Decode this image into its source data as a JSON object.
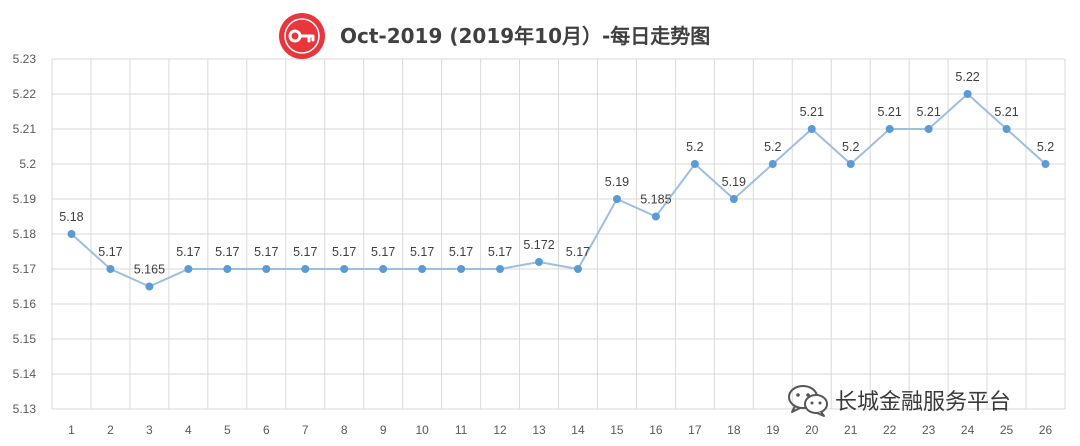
{
  "chart_data": {
    "type": "line",
    "title": "Oct-2019 (2019年10月）-每日走势图",
    "categories": [
      "1",
      "2",
      "3",
      "4",
      "5",
      "6",
      "7",
      "8",
      "9",
      "10",
      "11",
      "12",
      "13",
      "14",
      "15",
      "16",
      "17",
      "18",
      "19",
      "20",
      "21",
      "22",
      "23",
      "24",
      "25",
      "26"
    ],
    "series": [
      {
        "values": [
          5.18,
          5.17,
          5.165,
          5.17,
          5.17,
          5.17,
          5.17,
          5.17,
          5.17,
          5.17,
          5.17,
          5.17,
          5.172,
          5.17,
          5.19,
          5.185,
          5.2,
          5.19,
          5.2,
          5.21,
          5.2,
          5.21,
          5.21,
          5.22,
          5.21,
          5.2
        ],
        "labels": [
          "5.18",
          "5.17",
          "5.165",
          "5.17",
          "5.17",
          "5.17",
          "5.17",
          "5.17",
          "5.17",
          "5.17",
          "5.17",
          "5.17",
          "5.172",
          "5.17",
          "5.19",
          "5.185",
          "5.2",
          "5.19",
          "5.2",
          "5.21",
          "5.2",
          "5.21",
          "5.21",
          "5.22",
          "5.21",
          "5.2"
        ]
      }
    ],
    "yticks": [
      "5.13",
      "5.14",
      "5.15",
      "5.16",
      "5.17",
      "5.18",
      "5.19",
      "5.2",
      "5.21",
      "5.22",
      "5.23"
    ],
    "ylim": [
      5.13,
      5.23
    ],
    "xlabel": "",
    "ylabel": "",
    "grid": true,
    "line_color": "#9dbfe0",
    "marker_color": "#5b9bd5",
    "grid_color": "#d9d9d9"
  },
  "logo": {
    "icon": "key-icon",
    "color": "#e8363c"
  },
  "watermark": {
    "icon": "wechat-icon",
    "text": "长城金融服务平台"
  }
}
